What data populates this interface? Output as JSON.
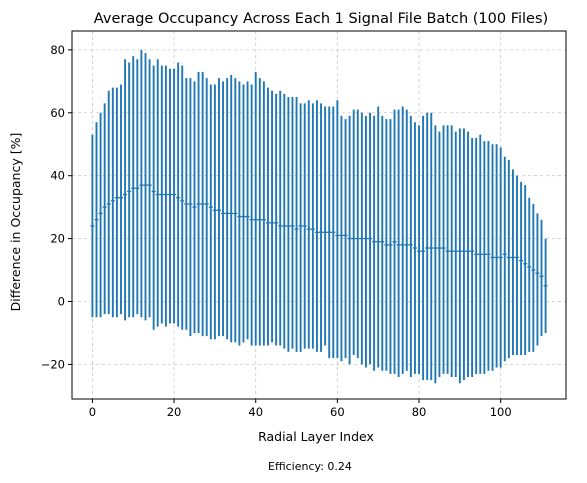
{
  "chart_data": {
    "type": "errorbar",
    "title": "Average Occupancy Across Each 1 Signal File Batch (100 Files)",
    "xlabel": "Radial Layer Index",
    "ylabel": "Difference in Occupancy [%]",
    "footnote": "Efficiency: 0.24",
    "xlim": [
      -5,
      116
    ],
    "ylim": [
      -31,
      86
    ],
    "xticks": [
      0,
      20,
      40,
      60,
      80,
      100
    ],
    "yticks": [
      -20,
      0,
      20,
      40,
      60,
      80
    ],
    "grid": true,
    "color": "#1f77b4",
    "x": [
      0,
      1,
      2,
      3,
      4,
      5,
      6,
      7,
      8,
      9,
      10,
      11,
      12,
      13,
      14,
      15,
      16,
      17,
      18,
      19,
      20,
      21,
      22,
      23,
      24,
      25,
      26,
      27,
      28,
      29,
      30,
      31,
      32,
      33,
      34,
      35,
      36,
      37,
      38,
      39,
      40,
      41,
      42,
      43,
      44,
      45,
      46,
      47,
      48,
      49,
      50,
      51,
      52,
      53,
      54,
      55,
      56,
      57,
      58,
      59,
      60,
      61,
      62,
      63,
      64,
      65,
      66,
      67,
      68,
      69,
      70,
      71,
      72,
      73,
      74,
      75,
      76,
      77,
      78,
      79,
      80,
      81,
      82,
      83,
      84,
      85,
      86,
      87,
      88,
      89,
      90,
      91,
      92,
      93,
      94,
      95,
      96,
      97,
      98,
      99,
      100,
      101,
      102,
      103,
      104,
      105,
      106,
      107,
      108,
      109,
      110,
      111
    ],
    "mean": [
      24,
      26,
      28,
      30,
      31,
      32,
      33,
      33,
      34,
      35,
      36,
      36,
      37,
      37,
      37,
      35,
      34,
      34,
      34,
      34,
      34,
      33,
      32,
      31,
      31,
      30,
      31,
      31,
      31,
      30,
      29,
      29,
      28,
      28,
      28,
      28,
      27,
      27,
      27,
      26,
      26,
      26,
      26,
      25,
      25,
      25,
      24,
      24,
      24,
      24,
      23,
      24,
      24,
      23,
      23,
      22,
      22,
      22,
      22,
      22,
      21,
      21,
      21,
      20,
      20,
      20,
      20,
      20,
      20,
      19,
      19,
      19,
      18,
      18,
      19,
      18,
      18,
      18,
      18,
      17,
      16,
      16,
      17,
      17,
      17,
      17,
      17,
      16,
      16,
      16,
      16,
      16,
      16,
      16,
      15,
      15,
      15,
      15,
      14,
      14,
      14,
      15,
      14,
      14,
      14,
      13,
      12,
      11,
      10,
      9,
      8,
      5
    ],
    "upper": [
      53,
      57,
      60,
      63,
      67,
      68,
      68,
      69,
      77,
      76,
      78,
      77,
      80,
      79,
      77,
      75,
      77,
      75,
      75,
      74,
      74,
      76,
      75,
      71,
      71,
      70,
      73,
      73,
      71,
      69,
      69,
      71,
      70,
      71,
      72,
      71,
      70,
      69,
      70,
      69,
      73,
      71,
      70,
      68,
      67,
      66,
      67,
      66,
      65,
      65,
      65,
      63,
      63,
      64,
      63,
      64,
      63,
      62,
      62,
      62,
      64,
      59,
      58,
      59,
      61,
      61,
      60,
      59,
      60,
      59,
      62,
      59,
      58,
      58,
      61,
      61,
      62,
      61,
      59,
      57,
      56,
      59,
      60,
      60,
      56,
      54,
      56,
      56,
      56,
      54,
      55,
      55,
      54,
      52,
      52,
      53,
      51,
      51,
      50,
      50,
      49,
      46,
      45,
      42,
      40,
      38,
      37,
      33,
      31,
      28,
      26,
      20
    ],
    "lower": [
      -5,
      -5,
      -5,
      -4,
      -4,
      -5,
      -5,
      -4,
      -6,
      -5,
      -5,
      -4,
      -5,
      -6,
      -5,
      -9,
      -8,
      -7,
      -8,
      -7,
      -7,
      -8,
      -9,
      -9,
      -11,
      -10,
      -10,
      -11,
      -11,
      -12,
      -12,
      -11,
      -11,
      -12,
      -13,
      -13,
      -14,
      -13,
      -12,
      -14,
      -14,
      -14,
      -14,
      -14,
      -13,
      -14,
      -14,
      -15,
      -16,
      -15,
      -16,
      -16,
      -15,
      -15,
      -15,
      -16,
      -16,
      -14,
      -18,
      -18,
      -18,
      -19,
      -18,
      -20,
      -17,
      -18,
      -20,
      -21,
      -20,
      -22,
      -21,
      -22,
      -22,
      -23,
      -23,
      -24,
      -23,
      -22,
      -24,
      -23,
      -23,
      -25,
      -25,
      -25,
      -26,
      -24,
      -23,
      -23,
      -24,
      -24,
      -26,
      -25,
      -24,
      -24,
      -23,
      -23,
      -23,
      -22,
      -22,
      -21,
      -21,
      -19,
      -18,
      -17,
      -17,
      -17,
      -17,
      -16,
      -16,
      -14,
      -11,
      -10
    ]
  }
}
